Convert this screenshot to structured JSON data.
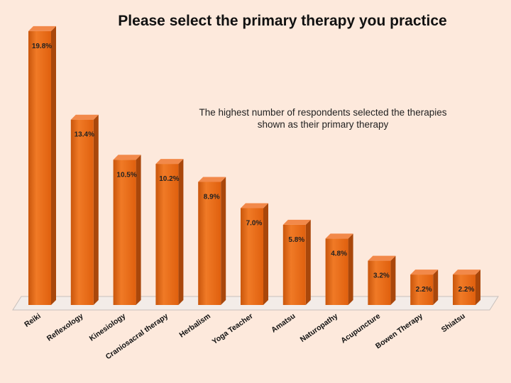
{
  "chart_data": {
    "type": "bar",
    "title": "Please  select the primary therapy you practice",
    "annotation": [
      "The highest number of respondents  selected the therapies",
      "shown as their primary therapy"
    ],
    "categories": [
      "Reiki",
      "Reflexology",
      "Kinesiology",
      "Craniosacral therapy",
      "Herbalism",
      "Yoga Teacher",
      "Amatsu",
      "Naturopathy",
      "Acupuncture",
      "Bowen Therapy",
      "Shiatsu"
    ],
    "values": [
      19.8,
      13.4,
      10.5,
      10.2,
      8.9,
      7.0,
      5.8,
      4.8,
      3.2,
      2.2,
      2.2
    ],
    "value_labels": [
      "19.8%",
      "13.4%",
      "10.5%",
      "10.2%",
      "8.9%",
      "7.0%",
      "5.8%",
      "4.8%",
      "3.2%",
      "2.2%",
      "2.2%"
    ],
    "ylim": [
      0,
      20
    ],
    "grid": false,
    "legend": "none",
    "colors": {
      "bar_front": "#e8650f",
      "bar_side": "#a9470b",
      "bar_top": "#f2894a",
      "background": "#fde9dc",
      "floor": "#f3ece8"
    }
  }
}
